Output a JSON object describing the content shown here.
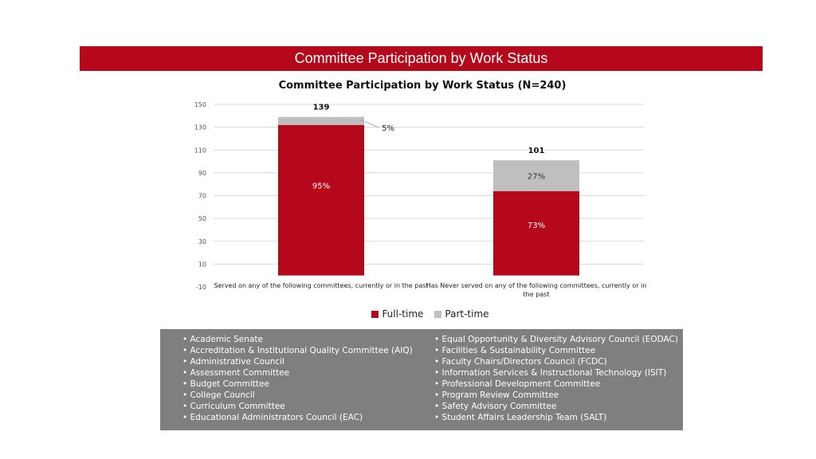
{
  "banner": {
    "title": "Committee Participation by Work Status"
  },
  "chart_data": {
    "type": "bar",
    "stacked": true,
    "title": "Committee Participation by Work Status (N=240)",
    "categories": [
      "Served on any of the following committees, currently or in the past",
      "Has Never served on any of the following committees, currently or in the past"
    ],
    "category_lines": [
      [
        "Served on any of the following committees, currently or in the past"
      ],
      [
        "Has Never served on any of the following committees, currently or in",
        "the past"
      ]
    ],
    "series": [
      {
        "name": "Full-time",
        "values": [
          132,
          74
        ],
        "labels": [
          "95%",
          "73%"
        ],
        "color": "#b5091b"
      },
      {
        "name": "Part-time",
        "values": [
          7,
          27
        ],
        "labels": [
          "5%",
          "27%"
        ],
        "color": "#bfbfbf"
      }
    ],
    "totals": [
      "139",
      "101"
    ],
    "ylim": [
      -10,
      150
    ],
    "yticks": [
      "-10",
      "10",
      "30",
      "50",
      "70",
      "90",
      "110",
      "130",
      "150"
    ],
    "grid": true,
    "legend": "bottom"
  },
  "committees": {
    "left": [
      "Academic Senate",
      "Accreditation & Institutional Quality Committee (AIQ)",
      "Administrative Council",
      "Assessment Committee",
      "Budget Committee",
      "College Council",
      "Curriculum Committee",
      "Educational Administrators Council (EAC)"
    ],
    "right": [
      "Equal Opportunity & Diversity Advisory Council (EODAC)",
      "Facilities & Sustainability Committee",
      "Faculty Chairs/Directors Council (FCDC)",
      "Information Services & Instructional Technology (ISIT)",
      "Professional Development Committee",
      "Program Review Committee",
      "Safety Advisory Committee",
      "Student Affairs Leadership Team (SALT)"
    ]
  }
}
